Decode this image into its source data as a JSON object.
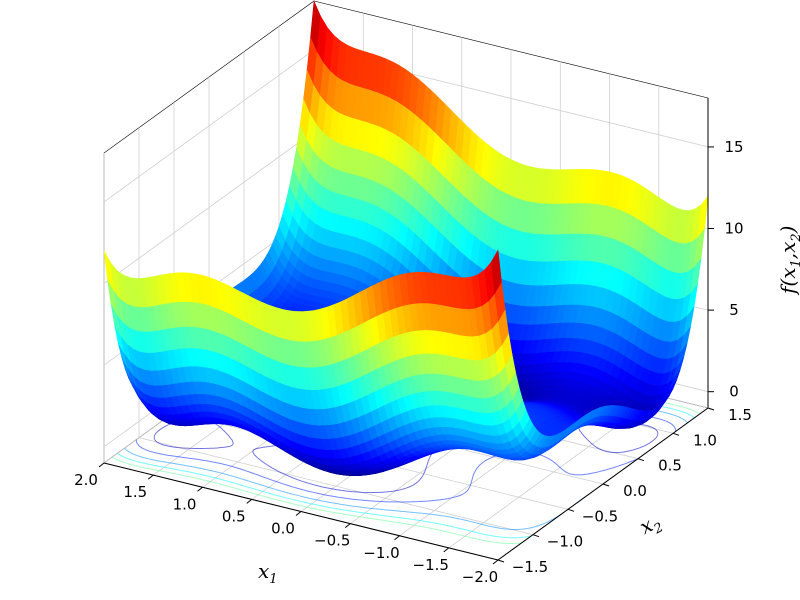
{
  "chart_data": {
    "type": "surface3d",
    "title": "",
    "function": "f(x1,x2) = (4 - 2.1*x1^2 + x1^4/3)*x1^2 + x1*x2 + (-4 + 4*x2^2)*x2^2",
    "xlabel": "x",
    "xlabel_sub": "1",
    "ylabel": "x",
    "ylabel_sub": "2",
    "zlabel": "f(x",
    "zlabel_sub1": "1",
    "zlabel_mid": ",x",
    "zlabel_sub2": "2",
    "zlabel_end": ")",
    "xlim": [
      -2.0,
      2.0
    ],
    "ylim": [
      -1.5,
      1.5
    ],
    "zlim": [
      -1.0,
      18.0
    ],
    "xticks": [
      "−2.0",
      "−1.5",
      "−1.0",
      "−0.5",
      "0.0",
      "0.5",
      "1.0",
      "1.5",
      "2.0"
    ],
    "yticks": [
      "−1.5",
      "−1.0",
      "−0.5",
      "0.0",
      "0.5",
      "1.0",
      "1.5"
    ],
    "zticks": [
      "0",
      "5",
      "10",
      "15"
    ],
    "x_tick_values": [
      -2.0,
      -1.5,
      -1.0,
      -0.5,
      0.0,
      0.5,
      1.0,
      1.5,
      2.0
    ],
    "y_tick_values": [
      -1.5,
      -1.0,
      -0.5,
      0.0,
      0.5,
      1.0,
      1.5
    ],
    "z_tick_values": [
      0,
      5,
      10,
      15
    ],
    "colormap": "jet",
    "contour_offset": -1.0,
    "contour_levels": [
      0.5,
      2.0,
      4.0,
      6.0,
      8.0
    ],
    "grid": true
  }
}
